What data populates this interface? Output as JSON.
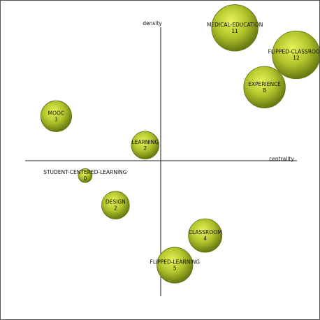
{
  "chart_data": {
    "type": "scatter",
    "title": "",
    "xlabel": "centrality",
    "ylabel": "density",
    "xlim": [
      -100,
      100
    ],
    "ylim": [
      -100,
      100
    ],
    "grid": false,
    "bubble_color": "#a6b925",
    "bubble_stroke": "#5e6e10",
    "points": [
      {
        "label": "MEDICAL-EDUCATION",
        "value": "11",
        "x": 55,
        "y": 98.5,
        "size": 11
      },
      {
        "label": "FLIPPED-CLASSROOM",
        "value": "12",
        "x": 100.5,
        "y": 78.5,
        "size": 12
      },
      {
        "label": "EXPERIENCE",
        "value": "8",
        "x": 77,
        "y": 54.5,
        "size": 8
      },
      {
        "label": "MOOC",
        "value": "3",
        "x": -77.5,
        "y": 33,
        "size": 3
      },
      {
        "label": "LEARNING",
        "value": "2",
        "x": -11.5,
        "y": 11.5,
        "size": 2
      },
      {
        "label": "STUDENT-CENTERED-LEARNING",
        "value": "0",
        "x": -56,
        "y": -11,
        "size": 0
      },
      {
        "label": "DESIGN",
        "value": "2",
        "x": -33.5,
        "y": -33,
        "size": 2
      },
      {
        "label": "CLASSROOM",
        "value": "4",
        "x": 33,
        "y": -55.5,
        "size": 4
      },
      {
        "label": "FLIPPED-LEARNING",
        "value": "5",
        "x": 10.5,
        "y": -77.5,
        "size": 5
      }
    ]
  }
}
